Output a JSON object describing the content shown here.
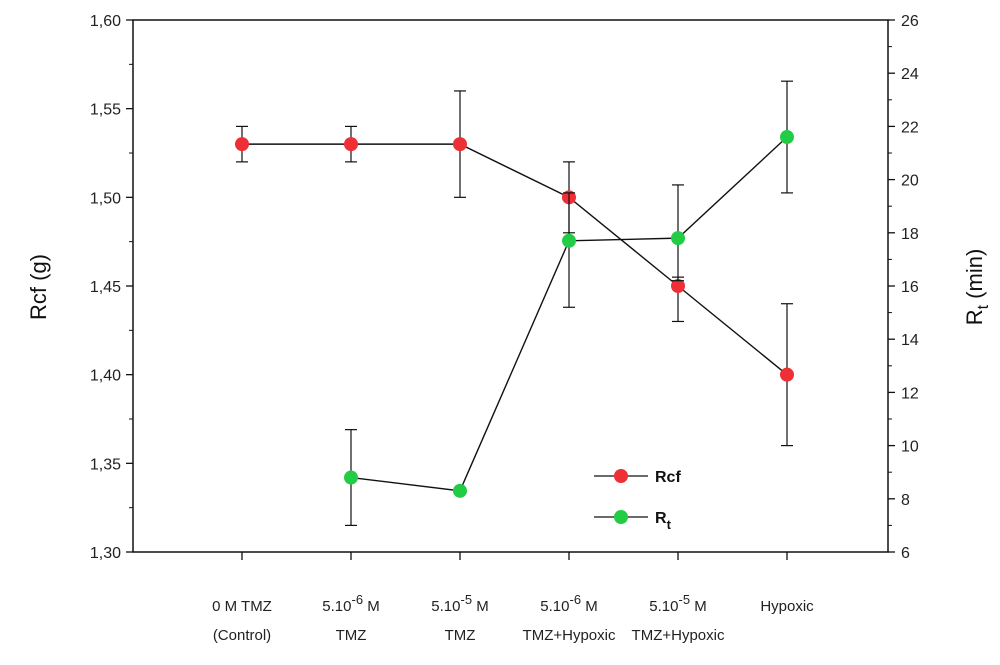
{
  "chart_data": {
    "type": "line",
    "categories": [
      {
        "line1": "0 M TMZ",
        "line2": "(Control)"
      },
      {
        "line1_base": "5.10",
        "line1_sup": "-6",
        "line1_unit": "M",
        "line2": "TMZ"
      },
      {
        "line1_base": "5.10",
        "line1_sup": "-5",
        "line1_unit": "M",
        "line2": "TMZ"
      },
      {
        "line1_base": "5.10",
        "line1_sup": "-6",
        "line1_unit": "M",
        "line2": "TMZ+Hypoxic"
      },
      {
        "line1_base": "5.10",
        "line1_sup": "-5",
        "line1_unit": "M",
        "line2": "TMZ+Hypoxic"
      },
      {
        "line1": "Hypoxic",
        "line2": ""
      }
    ],
    "left_axis": {
      "label": "Rcf (g)",
      "min": 1.3,
      "max": 1.6,
      "ticks": [
        "1,30",
        "1,35",
        "1,40",
        "1,45",
        "1,50",
        "1,55",
        "1,60"
      ]
    },
    "right_axis": {
      "label_base": "R",
      "label_sub": "t",
      "label_rest": " (min)",
      "min": 6,
      "max": 26,
      "ticks": [
        "6",
        "8",
        "10",
        "12",
        "14",
        "16",
        "18",
        "20",
        "22",
        "24",
        "26"
      ]
    },
    "series": [
      {
        "name": "Rcf",
        "axis": "left",
        "color": "#ee2f36",
        "values": [
          1.53,
          1.53,
          1.53,
          1.5,
          1.45,
          1.4
        ],
        "err_low": [
          1.52,
          1.52,
          1.5,
          1.48,
          1.43,
          1.36
        ],
        "err_high": [
          1.54,
          1.54,
          1.56,
          1.52,
          1.455,
          1.44
        ]
      },
      {
        "name_base": "R",
        "name_sub": "t",
        "axis": "right",
        "color": "#22cc44",
        "values": [
          null,
          8.8,
          8.3,
          17.7,
          17.8,
          21.6
        ],
        "err_low": [
          null,
          7.0,
          null,
          15.2,
          16.2,
          19.5
        ],
        "err_high": [
          null,
          10.6,
          null,
          19.5,
          19.8,
          23.7
        ]
      }
    ],
    "legend": {
      "position": "bottom-center"
    }
  }
}
